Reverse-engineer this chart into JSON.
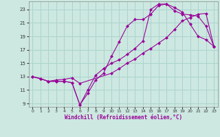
{
  "xlabel": "Windchill (Refroidissement éolien,°C)",
  "bg_color": "#cce8e0",
  "grid_color": "#aad4cc",
  "line_color": "#990099",
  "xlim": [
    -0.5,
    23.5
  ],
  "ylim": [
    8.5,
    24.2
  ],
  "xticks": [
    0,
    1,
    2,
    3,
    4,
    5,
    6,
    7,
    8,
    9,
    10,
    11,
    12,
    13,
    14,
    15,
    16,
    17,
    18,
    19,
    20,
    21,
    22,
    23
  ],
  "yticks": [
    9,
    11,
    13,
    15,
    17,
    19,
    21,
    23
  ],
  "line1_x": [
    0,
    1,
    2,
    3,
    4,
    5,
    6,
    7,
    8,
    9,
    10,
    11,
    12,
    13,
    14,
    15,
    16,
    17,
    18,
    19,
    20,
    21,
    22,
    23
  ],
  "line1_y": [
    13.0,
    12.7,
    12.3,
    12.3,
    12.3,
    12.1,
    8.8,
    11.0,
    13.2,
    14.2,
    15.0,
    15.5,
    16.3,
    17.2,
    18.3,
    23.0,
    23.8,
    23.8,
    23.3,
    22.6,
    20.8,
    19.0,
    18.5,
    17.5
  ],
  "line2_x": [
    0,
    1,
    2,
    3,
    4,
    5,
    6,
    7,
    8,
    9,
    10,
    11,
    12,
    13,
    14,
    15,
    16,
    17,
    18,
    19,
    20,
    21,
    22,
    23
  ],
  "line2_y": [
    13.0,
    12.7,
    12.3,
    12.3,
    12.3,
    12.1,
    8.8,
    10.5,
    12.5,
    13.5,
    16.0,
    18.2,
    20.5,
    21.5,
    21.5,
    22.3,
    23.6,
    23.8,
    22.8,
    22.3,
    22.2,
    22.0,
    20.5,
    17.5
  ],
  "line3_x": [
    0,
    1,
    2,
    3,
    4,
    5,
    6,
    10,
    11,
    12,
    13,
    14,
    15,
    16,
    17,
    18,
    19,
    20,
    21,
    22,
    23
  ],
  "line3_y": [
    13.0,
    12.7,
    12.3,
    12.5,
    12.6,
    12.8,
    12.0,
    13.5,
    14.2,
    15.0,
    15.6,
    16.5,
    17.2,
    18.0,
    18.8,
    20.0,
    21.3,
    21.8,
    22.3,
    22.4,
    17.5
  ]
}
